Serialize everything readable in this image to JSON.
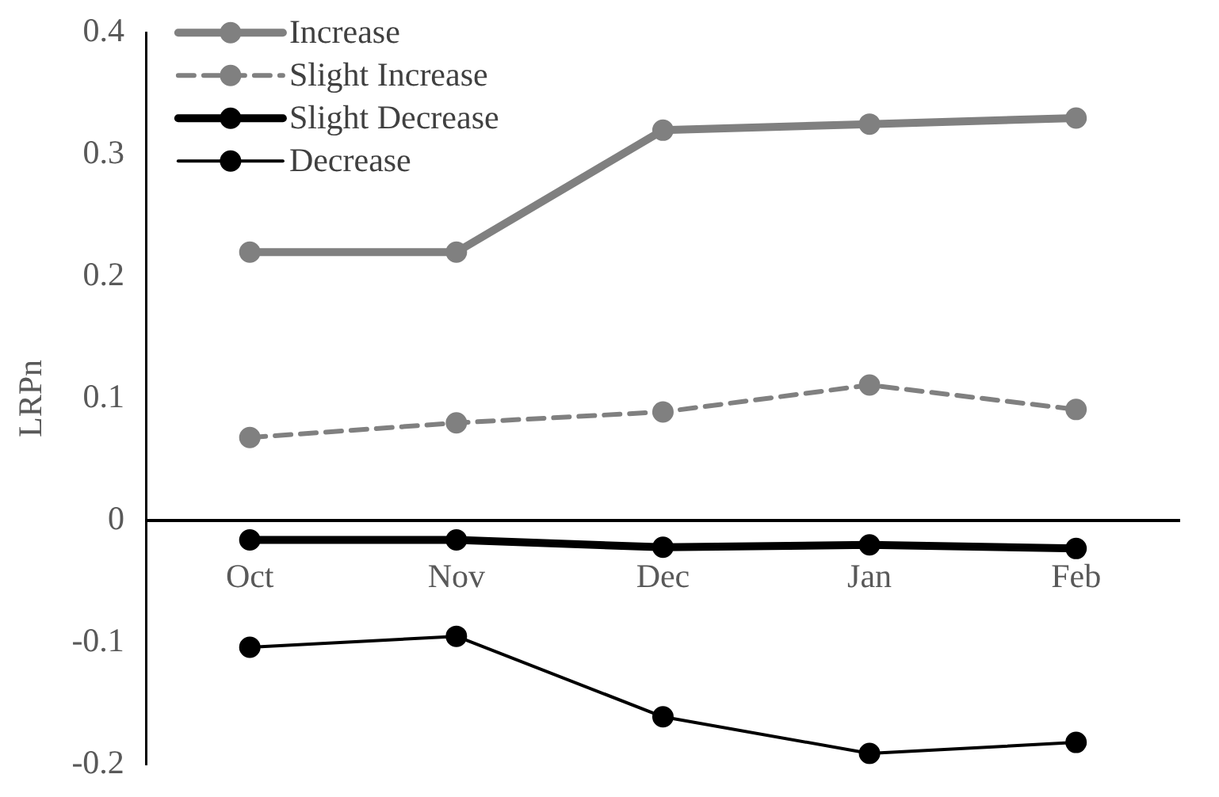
{
  "chart_data": {
    "type": "line",
    "ylabel": "LRPn",
    "categories": [
      "Oct",
      "Nov",
      "Dec",
      "Jan",
      "Feb"
    ],
    "series": [
      {
        "name": "Increase",
        "color": "#808080",
        "line_style": "solid",
        "values": [
          0.22,
          0.22,
          0.32,
          0.325,
          0.33
        ]
      },
      {
        "name": "Slight Increase",
        "color": "#808080",
        "line_style": "dashed",
        "values": [
          0.068,
          0.08,
          0.089,
          0.111,
          0.091
        ]
      },
      {
        "name": "Slight Decrease",
        "color": "#000000",
        "line_style": "solid",
        "values": [
          -0.016,
          -0.016,
          -0.022,
          -0.02,
          -0.023
        ]
      },
      {
        "name": "Decrease",
        "color": "#000000",
        "line_style": "solid",
        "values": [
          -0.104,
          -0.095,
          -0.161,
          -0.191,
          -0.182
        ]
      }
    ],
    "ylim": [
      -0.2,
      0.4
    ],
    "yticks": [
      -0.2,
      -0.1,
      0,
      0.1,
      0.2,
      0.3,
      0.4
    ],
    "grid": false,
    "legend": "top left",
    "marker": "circle"
  }
}
